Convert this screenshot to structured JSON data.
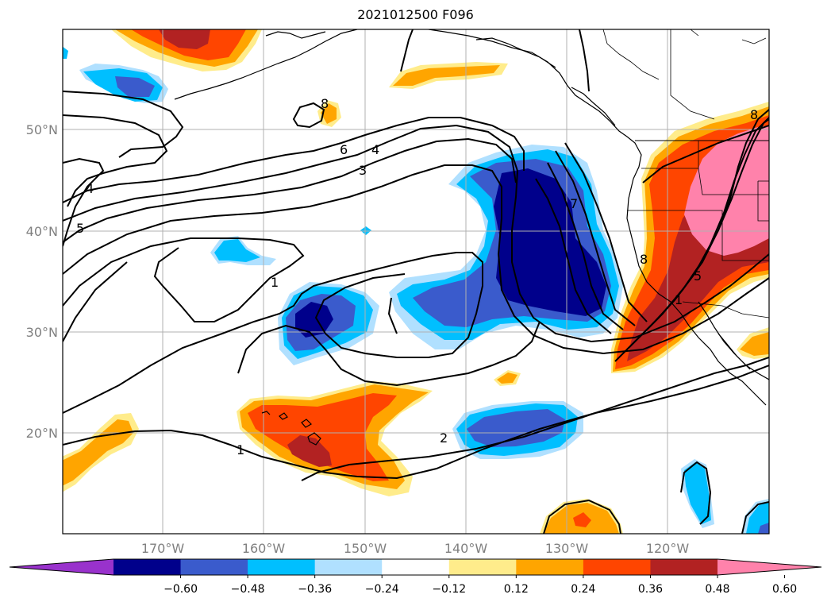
{
  "title": "2021012500 F096",
  "lat_labels": [
    "50°N",
    "40°N",
    "30°N",
    "20°N"
  ],
  "lon_labels": [
    "170°W",
    "160°W",
    "150°W",
    "140°W",
    "130°W",
    "120°W"
  ],
  "colorbar": {
    "ticks": [
      "−0.60",
      "−0.48",
      "−0.36",
      "−0.24",
      "−0.12",
      "0.12",
      "0.24",
      "0.36",
      "0.48",
      "0.60"
    ],
    "colors": [
      "#9932cc",
      "#00008b",
      "#3a5bcc",
      "#00bfff",
      "#b0e0ff",
      "#ffffff",
      "#ffec8b",
      "#ffa500",
      "#ff4500",
      "#b22222",
      "#ff82ab"
    ]
  },
  "contour_labels": [
    "6",
    "4",
    "3",
    "4",
    "5",
    "1",
    "7",
    "8",
    "5",
    "8",
    "1",
    "2",
    "1",
    "8"
  ],
  "colors": {
    "coast": "#000000",
    "grid": "#b0b0b0",
    "contour": "#000000"
  }
}
